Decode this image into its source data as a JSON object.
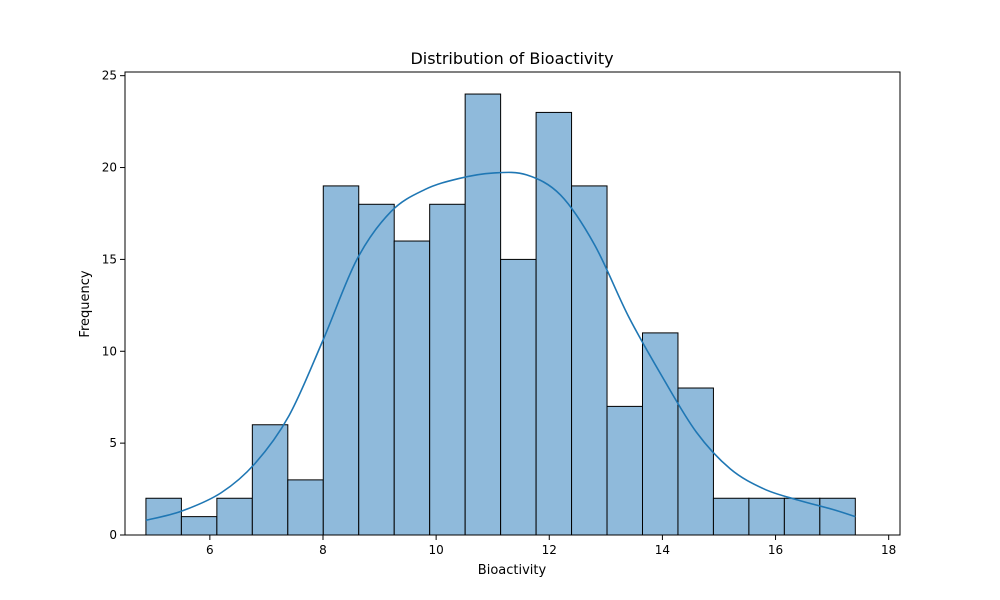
{
  "chart_data": {
    "type": "bar",
    "title": "Distribution of Bioactivity",
    "xlabel": "Bioactivity",
    "ylabel": "Frequency",
    "xlim": [
      4.5,
      18.2
    ],
    "ylim": [
      0,
      25.2
    ],
    "xticks": [
      6,
      8,
      10,
      12,
      14,
      16,
      18
    ],
    "yticks": [
      0,
      5,
      10,
      15,
      20,
      25
    ],
    "bin_edges": [
      4.87,
      5.497,
      6.124,
      6.751,
      7.378,
      8.005,
      8.632,
      9.259,
      9.886,
      10.513,
      11.14,
      11.767,
      12.394,
      13.021,
      13.648,
      14.275,
      14.902,
      15.529,
      16.156,
      16.783,
      17.41
    ],
    "values": [
      2,
      1,
      2,
      6,
      3,
      19,
      18,
      16,
      18,
      24,
      15,
      23,
      19,
      7,
      11,
      8,
      2,
      2,
      2,
      2
    ],
    "kde": {
      "x": [
        4.87,
        5.5,
        6.2,
        6.8,
        7.4,
        8.0,
        8.6,
        9.2,
        9.8,
        10.4,
        11.0,
        11.6,
        12.2,
        12.8,
        13.4,
        14.0,
        14.6,
        15.2,
        15.8,
        16.4,
        17.0,
        17.41
      ],
      "y": [
        0.8,
        1.3,
        2.3,
        3.9,
        6.5,
        10.6,
        15.0,
        17.6,
        18.8,
        19.4,
        19.7,
        19.6,
        18.5,
        15.8,
        11.9,
        8.6,
        5.6,
        3.6,
        2.5,
        1.9,
        1.4,
        1.0
      ]
    },
    "colors": {
      "bar_fill": "#8fbadb",
      "bar_edge": "#000000",
      "kde_line": "#1f77b4"
    },
    "grid": false,
    "legend": "none"
  }
}
